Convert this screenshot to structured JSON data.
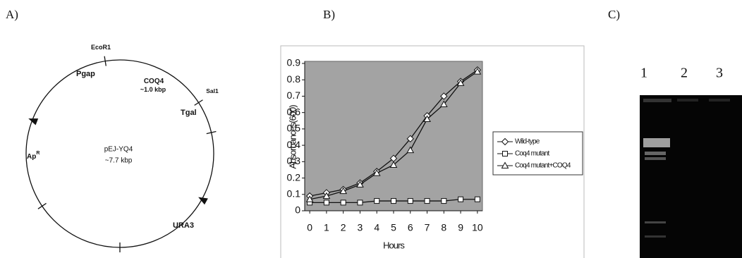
{
  "panel_labels": [
    "A)",
    "B)",
    "C)"
  ],
  "plasmid": {
    "name": "pEJ-YQ4",
    "size": "~7.7 kbp",
    "features": [
      {
        "text": "EcoR1"
      },
      {
        "text": "Pgap"
      },
      {
        "text": "COQ4"
      },
      {
        "text": "~1.0 kbp"
      },
      {
        "text": "Sal1"
      },
      {
        "text": "Tgal"
      },
      {
        "text": "Ap",
        "sup": "R"
      },
      {
        "text": "URA3"
      }
    ]
  },
  "chart_data": {
    "type": "line",
    "y_label": "Absorbances(600)",
    "x_label": "Hours",
    "x": [
      0,
      1,
      2,
      3,
      4,
      5,
      6,
      7,
      8,
      9,
      10
    ],
    "xlim": [
      -0.3,
      10.3
    ],
    "xticks": [
      0,
      1,
      2,
      3,
      4,
      5,
      6,
      7,
      8,
      9,
      10
    ],
    "ylim": [
      0,
      0.9
    ],
    "yticks": [
      0,
      0.1,
      0.2,
      0.3,
      0.4,
      0.5,
      0.6,
      0.7,
      0.8,
      0.9
    ],
    "plot_background": "#a3a3a3",
    "legend": "right",
    "series": [
      {
        "name": "Wild-type",
        "color": "#111111",
        "marker": "diamond",
        "values": [
          0.09,
          0.11,
          0.13,
          0.17,
          0.24,
          0.32,
          0.44,
          0.58,
          0.7,
          0.79,
          0.86
        ]
      },
      {
        "name": "Coq4 mutant",
        "color": "#111111",
        "marker": "square",
        "values": [
          0.05,
          0.05,
          0.05,
          0.05,
          0.06,
          0.06,
          0.06,
          0.06,
          0.06,
          0.07,
          0.07
        ]
      },
      {
        "name": "Coq4 mutant+COQ4",
        "color": "#111111",
        "marker": "triangle",
        "values": [
          0.07,
          0.09,
          0.12,
          0.16,
          0.23,
          0.28,
          0.37,
          0.56,
          0.65,
          0.78,
          0.85
        ]
      }
    ]
  },
  "gel": {
    "lanes": [
      "1",
      "2",
      "3"
    ]
  }
}
